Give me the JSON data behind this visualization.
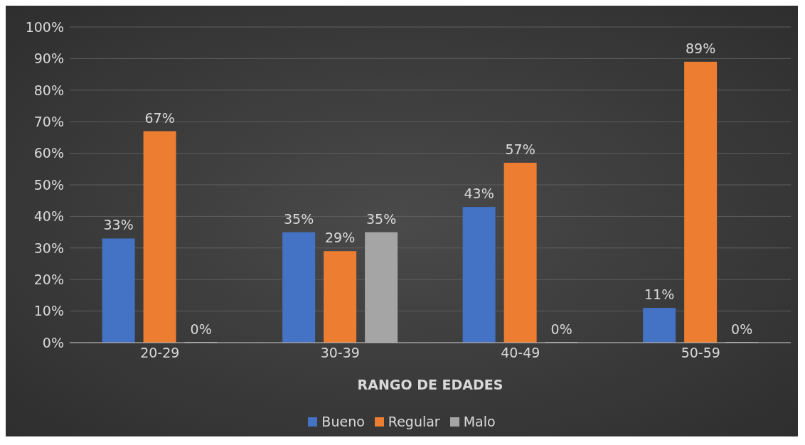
{
  "chart_data": {
    "type": "bar",
    "xlabel": "RANGO DE EDADES",
    "categories": [
      "20-29",
      "30-39",
      "40-49",
      "50-59"
    ],
    "series": [
      {
        "name": "Bueno",
        "color": "#4472c4",
        "values": [
          33,
          35,
          43,
          11
        ],
        "value_labels": [
          "33%",
          "35%",
          "43%",
          "11%"
        ]
      },
      {
        "name": "Regular",
        "color": "#ed7d31",
        "values": [
          67,
          29,
          57,
          89
        ],
        "value_labels": [
          "67%",
          "29%",
          "57%",
          "89%"
        ]
      },
      {
        "name": "Malo",
        "color": "#a5a5a5",
        "values": [
          0,
          35,
          0,
          0
        ],
        "value_labels": [
          "0%",
          "35%",
          "0%",
          "0%"
        ]
      }
    ],
    "ylim": [
      0,
      100
    ],
    "yticks": [
      {
        "value": 0,
        "label": "0%"
      },
      {
        "value": 10,
        "label": "10%"
      },
      {
        "value": 20,
        "label": "20%"
      },
      {
        "value": 30,
        "label": "30%"
      },
      {
        "value": 40,
        "label": "40%"
      },
      {
        "value": 50,
        "label": "50%"
      },
      {
        "value": 60,
        "label": "60%"
      },
      {
        "value": 70,
        "label": "70%"
      },
      {
        "value": 80,
        "label": "80%"
      },
      {
        "value": 90,
        "label": "90%"
      },
      {
        "value": 100,
        "label": "100%"
      }
    ],
    "grid": "y",
    "legend": "bottom"
  }
}
